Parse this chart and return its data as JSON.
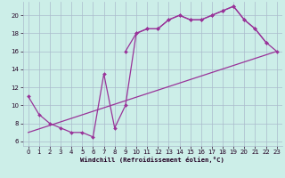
{
  "bg_color": "#cceee8",
  "grid_color": "#aabbcc",
  "line_color": "#993399",
  "font_color": "#220022",
  "xlabel": "Windchill (Refroidissement éolien,°C)",
  "xlim": [
    -0.5,
    23.5
  ],
  "ylim": [
    5.5,
    21.5
  ],
  "xticks": [
    0,
    1,
    2,
    3,
    4,
    5,
    6,
    7,
    8,
    9,
    10,
    11,
    12,
    13,
    14,
    15,
    16,
    17,
    18,
    19,
    20,
    21,
    22,
    23
  ],
  "yticks": [
    6,
    8,
    10,
    12,
    14,
    16,
    18,
    20
  ],
  "curve1_x": [
    0,
    1,
    2,
    3,
    4,
    5,
    6,
    7,
    8,
    9,
    10,
    11,
    12,
    13,
    14,
    15,
    16,
    17,
    18,
    19,
    20,
    21,
    22
  ],
  "curve1_y": [
    11.0,
    9.0,
    8.0,
    7.5,
    7.0,
    7.0,
    6.5,
    13.5,
    7.5,
    10.0,
    18.0,
    18.5,
    18.5,
    19.5,
    20.0,
    19.5,
    19.5,
    20.0,
    20.5,
    21.0,
    19.5,
    18.5,
    17.0
  ],
  "curve2_x": [
    9,
    10,
    11,
    12,
    13,
    14,
    15,
    16,
    17,
    18,
    19,
    20,
    21,
    22,
    23
  ],
  "curve2_y": [
    16.0,
    18.0,
    18.5,
    18.5,
    19.5,
    20.0,
    19.5,
    19.5,
    20.0,
    20.5,
    21.0,
    19.5,
    18.5,
    17.0,
    16.0
  ],
  "curve3_x": [
    0,
    23
  ],
  "curve3_y": [
    7.0,
    16.0
  ]
}
